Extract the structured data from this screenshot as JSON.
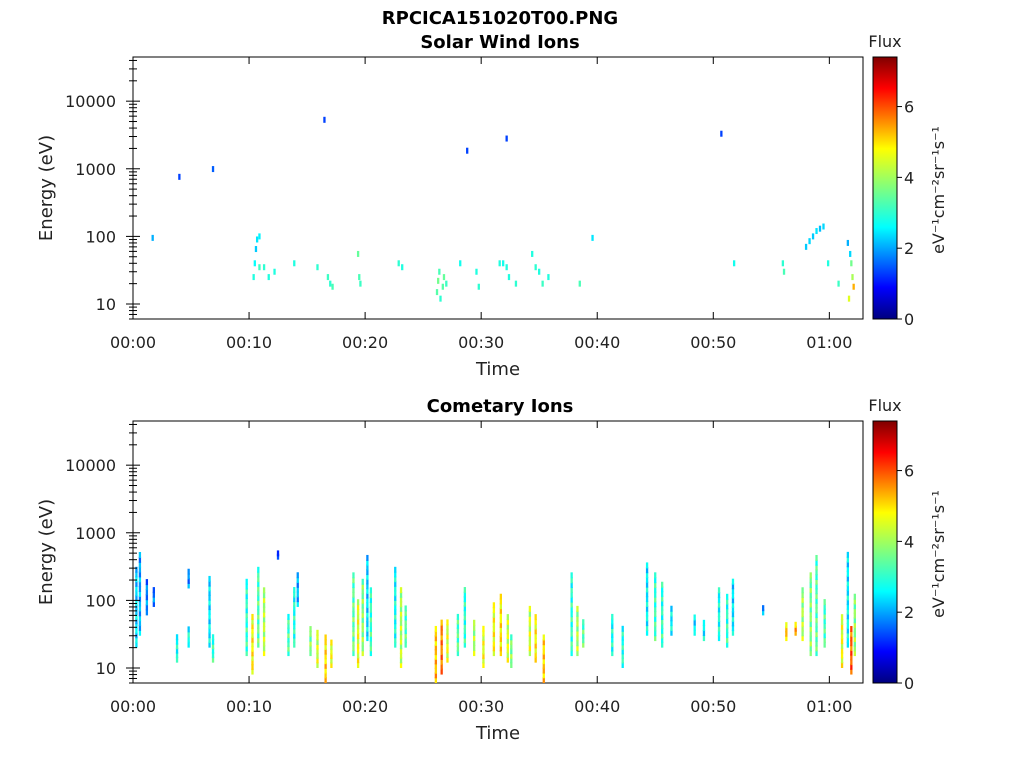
{
  "figure": {
    "filename": "RPCICA151020T00.PNG",
    "colorscale": "jet"
  },
  "chart_data": [
    {
      "type": "heatmap",
      "title": "Solar Wind Ions",
      "xlabel": "Time",
      "ylabel": "Energy (eV)",
      "x_tick_labels": [
        "00:00",
        "00:10",
        "00:20",
        "00:30",
        "00:40",
        "00:50",
        "01:00"
      ],
      "x_ticks_min": [
        0,
        10,
        20,
        30,
        40,
        50,
        60
      ],
      "xlim_min": [
        0,
        62.9
      ],
      "y_scale": "log",
      "y_tick_labels": [
        "10",
        "100",
        "1000",
        "10000"
      ],
      "y_ticks": [
        10,
        100,
        1000,
        10000
      ],
      "ylim": [
        6,
        45000
      ],
      "colorbar": {
        "label": "Flux",
        "unit": "eV⁻¹cm⁻²sr⁻¹s⁻¹",
        "range": [
          0,
          7.4
        ],
        "ticks": [
          "0",
          "2",
          "4",
          "6"
        ]
      },
      "points": [
        [
          1.7,
          95,
          2.2
        ],
        [
          4.0,
          760,
          1.4
        ],
        [
          6.9,
          990,
          1.6
        ],
        [
          16.5,
          5300,
          1.4
        ],
        [
          28.8,
          1850,
          1.4
        ],
        [
          32.2,
          2800,
          1.4
        ],
        [
          39.6,
          95,
          2.6
        ],
        [
          50.7,
          3300,
          1.4
        ],
        [
          10.4,
          25,
          3.0
        ],
        [
          10.5,
          40,
          2.8
        ],
        [
          10.6,
          65,
          2.4
        ],
        [
          10.7,
          90,
          2.6
        ],
        [
          10.9,
          100,
          2.7
        ],
        [
          10.9,
          35,
          3.2
        ],
        [
          11.3,
          35,
          3.1
        ],
        [
          11.7,
          25,
          3.0
        ],
        [
          12.2,
          30,
          3.0
        ],
        [
          13.9,
          40,
          3.0
        ],
        [
          15.9,
          35,
          3.1
        ],
        [
          16.8,
          25,
          3.2
        ],
        [
          17.0,
          20,
          3.1
        ],
        [
          17.2,
          18,
          3.3
        ],
        [
          19.4,
          55,
          3.5
        ],
        [
          19.5,
          25,
          3.3
        ],
        [
          19.6,
          20,
          3.2
        ],
        [
          22.9,
          40,
          3.1
        ],
        [
          23.2,
          35,
          3.0
        ],
        [
          26.2,
          15,
          3.4
        ],
        [
          26.3,
          22,
          3.6
        ],
        [
          26.4,
          30,
          3.3
        ],
        [
          26.5,
          12,
          3.1
        ],
        [
          26.7,
          18,
          3.4
        ],
        [
          26.8,
          25,
          3.5
        ],
        [
          27.0,
          20,
          3.2
        ],
        [
          28.2,
          40,
          2.9
        ],
        [
          29.6,
          30,
          3.0
        ],
        [
          29.8,
          18,
          3.1
        ],
        [
          31.6,
          40,
          3.0
        ],
        [
          31.9,
          40,
          2.9
        ],
        [
          32.2,
          35,
          3.0
        ],
        [
          32.4,
          25,
          3.0
        ],
        [
          33.0,
          20,
          3.1
        ],
        [
          34.4,
          55,
          3.0
        ],
        [
          34.7,
          35,
          3.1
        ],
        [
          35.0,
          30,
          3.0
        ],
        [
          35.3,
          20,
          3.2
        ],
        [
          35.8,
          25,
          3.0
        ],
        [
          38.5,
          20,
          3.3
        ],
        [
          51.8,
          40,
          2.9
        ],
        [
          56.0,
          40,
          3.1
        ],
        [
          56.1,
          30,
          3.3
        ],
        [
          58.0,
          70,
          2.4
        ],
        [
          58.3,
          85,
          2.5
        ],
        [
          58.6,
          100,
          2.4
        ],
        [
          58.9,
          120,
          2.6
        ],
        [
          59.2,
          130,
          2.3
        ],
        [
          59.5,
          140,
          2.5
        ],
        [
          59.9,
          40,
          3.0
        ],
        [
          60.8,
          20,
          3.2
        ],
        [
          61.6,
          80,
          2.2
        ],
        [
          61.8,
          55,
          2.5
        ],
        [
          61.9,
          40,
          3.6
        ],
        [
          62.0,
          25,
          4.0
        ],
        [
          62.1,
          18,
          5.2
        ],
        [
          61.7,
          12,
          4.4
        ]
      ]
    },
    {
      "type": "heatmap",
      "title": "Cometary Ions",
      "xlabel": "Time",
      "ylabel": "Energy (eV)",
      "x_tick_labels": [
        "00:00",
        "00:10",
        "00:20",
        "00:30",
        "00:40",
        "00:50",
        "01:00"
      ],
      "x_ticks_min": [
        0,
        10,
        20,
        30,
        40,
        50,
        60
      ],
      "xlim_min": [
        0,
        62.9
      ],
      "y_scale": "log",
      "y_tick_labels": [
        "10",
        "100",
        "1000",
        "10000"
      ],
      "y_ticks": [
        10,
        100,
        1000,
        10000
      ],
      "ylim": [
        6,
        45000
      ],
      "colorbar": {
        "label": "Flux",
        "unit": "eV⁻¹cm⁻²sr⁻¹s⁻¹",
        "range": [
          0,
          7.4
        ],
        "ticks": [
          "0",
          "2",
          "4",
          "6"
        ]
      },
      "columns": [
        {
          "t": 0.3,
          "lo": 20,
          "hi": 300,
          "v": 2.6
        },
        {
          "t": 0.6,
          "lo": 30,
          "hi": 500,
          "v": 2.3
        },
        {
          "t": 1.2,
          "lo": 60,
          "hi": 200,
          "v": 2.0
        },
        {
          "t": 1.8,
          "lo": 80,
          "hi": 150,
          "v": 1.9
        },
        {
          "t": 3.8,
          "lo": 12,
          "hi": 30,
          "v": 3.0
        },
        {
          "t": 4.8,
          "lo": 150,
          "hi": 280,
          "v": 2.0
        },
        {
          "t": 4.8,
          "lo": 20,
          "hi": 40,
          "v": 3.0
        },
        {
          "t": 6.6,
          "lo": 20,
          "hi": 220,
          "v": 2.7
        },
        {
          "t": 6.9,
          "lo": 12,
          "hi": 30,
          "v": 3.2
        },
        {
          "t": 9.8,
          "lo": 15,
          "hi": 200,
          "v": 3.2
        },
        {
          "t": 10.3,
          "lo": 8,
          "hi": 60,
          "v": 4.8
        },
        {
          "t": 10.8,
          "lo": 20,
          "hi": 300,
          "v": 3.5
        },
        {
          "t": 11.3,
          "lo": 15,
          "hi": 150,
          "v": 4.2
        },
        {
          "t": 12.5,
          "lo": 400,
          "hi": 500,
          "v": 1.6
        },
        {
          "t": 13.4,
          "lo": 15,
          "hi": 60,
          "v": 3.4
        },
        {
          "t": 13.9,
          "lo": 20,
          "hi": 150,
          "v": 3.1
        },
        {
          "t": 14.2,
          "lo": 80,
          "hi": 250,
          "v": 2.3
        },
        {
          "t": 15.3,
          "lo": 15,
          "hi": 40,
          "v": 3.8
        },
        {
          "t": 15.9,
          "lo": 10,
          "hi": 35,
          "v": 4.4
        },
        {
          "t": 16.6,
          "lo": 6,
          "hi": 30,
          "v": 5.0
        },
        {
          "t": 17.1,
          "lo": 10,
          "hi": 25,
          "v": 4.6
        },
        {
          "t": 19.0,
          "lo": 15,
          "hi": 250,
          "v": 3.6
        },
        {
          "t": 19.4,
          "lo": 10,
          "hi": 100,
          "v": 4.6
        },
        {
          "t": 19.8,
          "lo": 15,
          "hi": 200,
          "v": 3.9
        },
        {
          "t": 20.2,
          "lo": 25,
          "hi": 450,
          "v": 2.6
        },
        {
          "t": 20.5,
          "lo": 15,
          "hi": 150,
          "v": 3.3
        },
        {
          "t": 22.6,
          "lo": 20,
          "hi": 300,
          "v": 3.0
        },
        {
          "t": 23.1,
          "lo": 10,
          "hi": 150,
          "v": 4.2
        },
        {
          "t": 23.5,
          "lo": 20,
          "hi": 80,
          "v": 3.5
        },
        {
          "t": 26.1,
          "lo": 6,
          "hi": 40,
          "v": 5.2
        },
        {
          "t": 26.6,
          "lo": 8,
          "hi": 50,
          "v": 5.7
        },
        {
          "t": 27.1,
          "lo": 12,
          "hi": 50,
          "v": 4.5
        },
        {
          "t": 28.0,
          "lo": 15,
          "hi": 60,
          "v": 3.5
        },
        {
          "t": 28.6,
          "lo": 20,
          "hi": 150,
          "v": 3.2
        },
        {
          "t": 29.4,
          "lo": 15,
          "hi": 50,
          "v": 4.1
        },
        {
          "t": 30.2,
          "lo": 10,
          "hi": 40,
          "v": 4.6
        },
        {
          "t": 31.1,
          "lo": 15,
          "hi": 90,
          "v": 4.7
        },
        {
          "t": 31.7,
          "lo": 15,
          "hi": 120,
          "v": 4.9
        },
        {
          "t": 32.3,
          "lo": 12,
          "hi": 60,
          "v": 4.4
        },
        {
          "t": 32.6,
          "lo": 10,
          "hi": 30,
          "v": 3.8
        },
        {
          "t": 34.2,
          "lo": 15,
          "hi": 80,
          "v": 4.4
        },
        {
          "t": 34.7,
          "lo": 12,
          "hi": 60,
          "v": 4.8
        },
        {
          "t": 35.4,
          "lo": 6,
          "hi": 30,
          "v": 5.1
        },
        {
          "t": 37.8,
          "lo": 15,
          "hi": 250,
          "v": 3.2
        },
        {
          "t": 38.3,
          "lo": 15,
          "hi": 80,
          "v": 4.1
        },
        {
          "t": 38.8,
          "lo": 20,
          "hi": 50,
          "v": 3.5
        },
        {
          "t": 41.3,
          "lo": 15,
          "hi": 60,
          "v": 3.0
        },
        {
          "t": 42.2,
          "lo": 10,
          "hi": 40,
          "v": 3.1
        },
        {
          "t": 44.3,
          "lo": 30,
          "hi": 350,
          "v": 2.8
        },
        {
          "t": 45.0,
          "lo": 25,
          "hi": 250,
          "v": 3.3
        },
        {
          "t": 45.6,
          "lo": 20,
          "hi": 180,
          "v": 3.2
        },
        {
          "t": 46.4,
          "lo": 30,
          "hi": 80,
          "v": 2.8
        },
        {
          "t": 48.4,
          "lo": 30,
          "hi": 60,
          "v": 2.7
        },
        {
          "t": 49.2,
          "lo": 25,
          "hi": 50,
          "v": 2.8
        },
        {
          "t": 50.5,
          "lo": 25,
          "hi": 150,
          "v": 3.0
        },
        {
          "t": 51.2,
          "lo": 20,
          "hi": 120,
          "v": 3.2
        },
        {
          "t": 51.7,
          "lo": 30,
          "hi": 200,
          "v": 2.7
        },
        {
          "t": 54.3,
          "lo": 60,
          "hi": 80,
          "v": 2.3
        },
        {
          "t": 56.3,
          "lo": 25,
          "hi": 45,
          "v": 5.1
        },
        {
          "t": 57.1,
          "lo": 30,
          "hi": 45,
          "v": 5.3
        },
        {
          "t": 57.7,
          "lo": 25,
          "hi": 150,
          "v": 4.1
        },
        {
          "t": 58.4,
          "lo": 15,
          "hi": 250,
          "v": 3.8
        },
        {
          "t": 58.9,
          "lo": 15,
          "hi": 450,
          "v": 3.5
        },
        {
          "t": 59.6,
          "lo": 20,
          "hi": 100,
          "v": 3.4
        },
        {
          "t": 61.1,
          "lo": 10,
          "hi": 60,
          "v": 4.6
        },
        {
          "t": 61.6,
          "lo": 20,
          "hi": 500,
          "v": 2.8
        },
        {
          "t": 61.9,
          "lo": 8,
          "hi": 40,
          "v": 5.9
        },
        {
          "t": 62.2,
          "lo": 15,
          "hi": 120,
          "v": 3.9
        }
      ]
    }
  ]
}
